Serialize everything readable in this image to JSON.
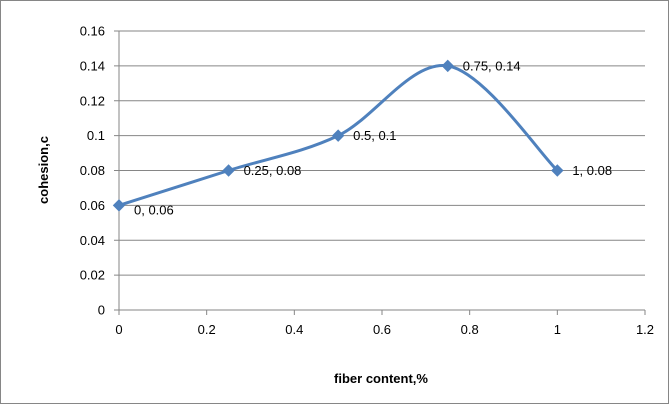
{
  "colors": {
    "series": "#4f81bd",
    "grid": "#868686",
    "axis": "#868686",
    "border": "#868686",
    "text": "#000000"
  },
  "chart_data": {
    "type": "line",
    "smooth": true,
    "marker": "diamond",
    "title": "",
    "xlabel": "fiber content,%",
    "ylabel": "cohesion,c",
    "xlim": [
      0,
      1.2
    ],
    "ylim": [
      0,
      0.16
    ],
    "xticks": [
      "0",
      "0.2",
      "0.4",
      "0.6",
      "0.8",
      "1",
      "1.2"
    ],
    "yticks": [
      "0",
      "0.02",
      "0.04",
      "0.06",
      "0.08",
      "0.1",
      "0.12",
      "0.14",
      "0.16"
    ],
    "grid": "horizontal",
    "legend": "none",
    "series": [
      {
        "x": [
          0,
          0.25,
          0.5,
          0.75,
          1
        ],
        "y": [
          0.06,
          0.08,
          0.1,
          0.14,
          0.08
        ],
        "labels": [
          "0, 0.06",
          "0.25, 0.08",
          "0.5, 0.1",
          "0.75, 0.14",
          "1, 0.08"
        ]
      }
    ]
  }
}
